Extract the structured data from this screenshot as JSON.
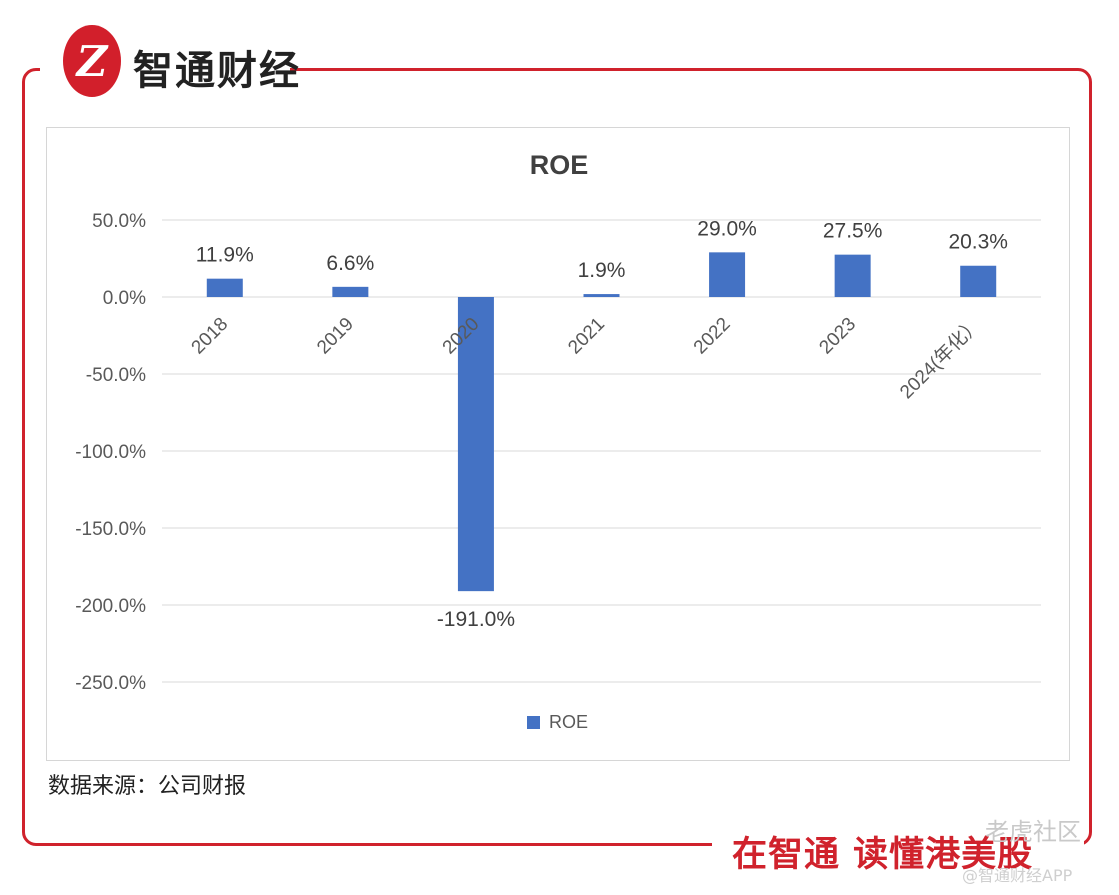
{
  "brand": {
    "name": "智通财经",
    "logo_mark": "Z"
  },
  "source_note": "数据来源：公司财报",
  "slogan": "在智通  读懂港美股",
  "watermarks": {
    "community": "老虎社区",
    "app_handle": "@智通财经APP"
  },
  "chart_data": {
    "type": "bar",
    "title": "ROE",
    "categories": [
      "2018",
      "2019",
      "2020",
      "2021",
      "2022",
      "2023",
      "2024(年化）"
    ],
    "series": [
      {
        "name": "ROE",
        "values": [
          11.9,
          6.6,
          -191.0,
          1.9,
          29.0,
          27.5,
          20.3
        ]
      }
    ],
    "data_labels": [
      "11.9%",
      "6.6%",
      "-191.0%",
      "1.9%",
      "29.0%",
      "27.5%",
      "20.3%"
    ],
    "y_ticks": [
      50,
      0,
      -50,
      -100,
      -150,
      -200,
      -250
    ],
    "y_tick_labels": [
      "50.0%",
      "0.0%",
      "-50.0%",
      "-100.0%",
      "-150.0%",
      "-200.0%",
      "-250.0%"
    ],
    "ylim": [
      -250,
      50
    ],
    "grid": true,
    "legend": "bottom-center",
    "bar_color": "#4472c4"
  }
}
